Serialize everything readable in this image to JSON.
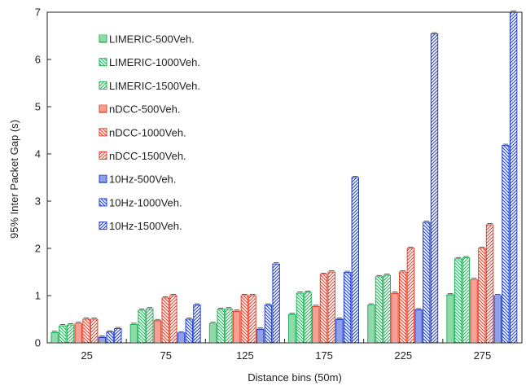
{
  "chart_data": {
    "type": "bar",
    "xlabel": "Distance bins (50m)",
    "ylabel": "95% Inter Packet Gap (s)",
    "categories": [
      "25",
      "75",
      "125",
      "175",
      "225",
      "275"
    ],
    "ylim": [
      0,
      7
    ],
    "yticks": [
      "0",
      "1",
      "2",
      "3",
      "4",
      "5",
      "6",
      "7"
    ],
    "grid": false,
    "legend_position": "top-left",
    "series": [
      {
        "name": "LIMERIC-500Veh.",
        "color": "#22b35a",
        "pattern": "horizontal",
        "values": [
          0.22,
          0.39,
          0.41,
          0.6,
          0.8,
          1.02
        ]
      },
      {
        "name": "LIMERIC-1000Veh.",
        "color": "#22b35a",
        "pattern": "diag-down",
        "values": [
          0.36,
          0.69,
          0.71,
          1.05,
          1.4,
          1.78
        ]
      },
      {
        "name": "LIMERIC-1500Veh.",
        "color": "#22b35a",
        "pattern": "diag-up",
        "values": [
          0.38,
          0.72,
          0.72,
          1.07,
          1.43,
          1.8
        ]
      },
      {
        "name": "nDCC-500Veh.",
        "color": "#e8402a",
        "pattern": "horizontal",
        "values": [
          0.41,
          0.47,
          0.67,
          0.77,
          1.05,
          1.34
        ]
      },
      {
        "name": "nDCC-1000Veh.",
        "color": "#e8402a",
        "pattern": "diag-down",
        "values": [
          0.5,
          0.95,
          1.0,
          1.45,
          1.5,
          2.0
        ]
      },
      {
        "name": "nDCC-1500Veh.",
        "color": "#e8402a",
        "pattern": "diag-up",
        "values": [
          0.5,
          1.0,
          1.0,
          1.5,
          2.0,
          2.5
        ]
      },
      {
        "name": "10Hz-500Veh.",
        "color": "#1f3fd1",
        "pattern": "horizontal",
        "values": [
          0.12,
          0.21,
          0.29,
          0.5,
          0.7,
          1.0
        ]
      },
      {
        "name": "10Hz-1000Veh.",
        "color": "#1f3fd1",
        "pattern": "diag-down",
        "values": [
          0.23,
          0.5,
          0.8,
          1.49,
          2.55,
          4.18
        ]
      },
      {
        "name": "10Hz-1500Veh.",
        "color": "#1f3fd1",
        "pattern": "diag-up",
        "values": [
          0.3,
          0.8,
          1.67,
          3.5,
          6.54,
          7.0
        ]
      }
    ]
  }
}
